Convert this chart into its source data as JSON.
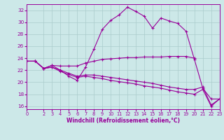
{
  "background_color": "#cce8e8",
  "grid_color": "#aacccc",
  "line_color": "#990099",
  "xlabel": "Windchill (Refroidissement éolien,°C)",
  "xlim": [
    0,
    23
  ],
  "ylim": [
    15.5,
    33
  ],
  "yticks": [
    16,
    18,
    20,
    22,
    24,
    26,
    28,
    30,
    32
  ],
  "xticks": [
    0,
    2,
    3,
    4,
    5,
    6,
    7,
    8,
    9,
    10,
    11,
    12,
    13,
    14,
    15,
    16,
    17,
    18,
    19,
    20,
    21,
    22,
    23
  ],
  "line1_x": [
    0,
    1,
    2,
    3,
    4,
    5,
    6,
    7,
    8,
    9,
    10,
    11,
    12,
    13,
    14,
    15,
    16,
    17,
    18,
    19,
    20
  ],
  "line1_y": [
    23.5,
    23.5,
    22.3,
    22.8,
    22.7,
    22.7,
    22.7,
    23.2,
    23.5,
    23.8,
    23.9,
    24.0,
    24.1,
    24.1,
    24.2,
    24.2,
    24.2,
    24.3,
    24.3,
    24.3,
    24.0
  ],
  "line2_x": [
    0,
    1,
    2,
    3,
    4,
    5,
    6,
    7,
    8,
    9,
    10,
    11,
    12,
    13,
    14,
    15,
    16,
    17,
    18,
    19,
    20,
    21,
    22,
    23
  ],
  "line2_y": [
    23.5,
    23.5,
    22.3,
    22.8,
    22.0,
    21.0,
    20.3,
    22.5,
    25.5,
    28.8,
    30.3,
    31.2,
    32.5,
    31.8,
    31.0,
    29.0,
    30.7,
    30.2,
    29.8,
    28.5,
    23.8,
    19.0,
    17.2,
    17.2
  ],
  "line3_x": [
    0,
    1,
    2,
    3,
    4,
    5,
    6,
    7,
    8,
    9,
    10,
    11,
    12,
    13,
    14,
    15,
    16,
    17,
    18,
    19,
    20,
    21,
    22,
    23
  ],
  "line3_y": [
    23.5,
    23.5,
    22.3,
    22.5,
    22.0,
    21.5,
    21.0,
    21.2,
    21.2,
    21.0,
    20.8,
    20.6,
    20.4,
    20.2,
    20.0,
    19.8,
    19.5,
    19.2,
    19.0,
    18.8,
    18.8,
    19.2,
    16.2,
    17.2
  ],
  "line4_x": [
    0,
    1,
    2,
    3,
    4,
    5,
    6,
    7,
    8,
    9,
    10,
    11,
    12,
    13,
    14,
    15,
    16,
    17,
    18,
    19,
    20,
    21,
    22,
    23
  ],
  "line4_y": [
    23.5,
    23.5,
    22.3,
    22.5,
    21.8,
    21.3,
    20.8,
    21.0,
    20.8,
    20.6,
    20.3,
    20.1,
    19.9,
    19.7,
    19.4,
    19.2,
    19.0,
    18.7,
    18.4,
    18.2,
    18.0,
    18.8,
    16.0,
    17.2
  ]
}
